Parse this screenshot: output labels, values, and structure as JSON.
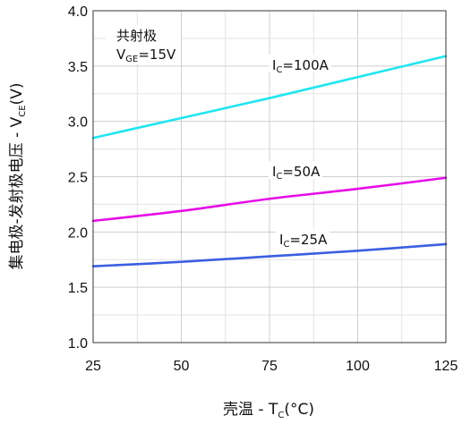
{
  "chart_data": {
    "type": "line",
    "xlabel": {
      "prefix": "壳温 - T",
      "sub": "C",
      "suffix": "(°C)"
    },
    "ylabel": {
      "prefix": "集电极-发射极电压 - V",
      "sub": "CE",
      "suffix": "(V)"
    },
    "xlim": [
      25,
      125
    ],
    "ylim": [
      1.0,
      4.0
    ],
    "x_ticks": [
      "25",
      "50",
      "75",
      "100",
      "125"
    ],
    "y_ticks": [
      "1.0",
      "1.5",
      "2.0",
      "2.5",
      "3.0",
      "3.5",
      "4.0"
    ],
    "grid": true,
    "annotation": {
      "line1": "共射极",
      "line2": {
        "prefix": "V",
        "sub": "GE",
        "suffix": "=15V"
      }
    },
    "x": [
      25,
      50,
      75,
      100,
      125
    ],
    "series": [
      {
        "name": {
          "prefix": "I",
          "sub": "C",
          "suffix": "=100A"
        },
        "color": "#22e5f0",
        "values": [
          2.85,
          3.03,
          3.21,
          3.4,
          3.59
        ]
      },
      {
        "name": {
          "prefix": "I",
          "sub": "C",
          "suffix": "=50A"
        },
        "color": "#e60ce6",
        "values": [
          2.1,
          2.19,
          2.3,
          2.39,
          2.49
        ]
      },
      {
        "name": {
          "prefix": "I",
          "sub": "C",
          "suffix": "=25A"
        },
        "color": "#3a5fe0",
        "values": [
          1.69,
          1.73,
          1.78,
          1.83,
          1.89
        ]
      }
    ]
  }
}
